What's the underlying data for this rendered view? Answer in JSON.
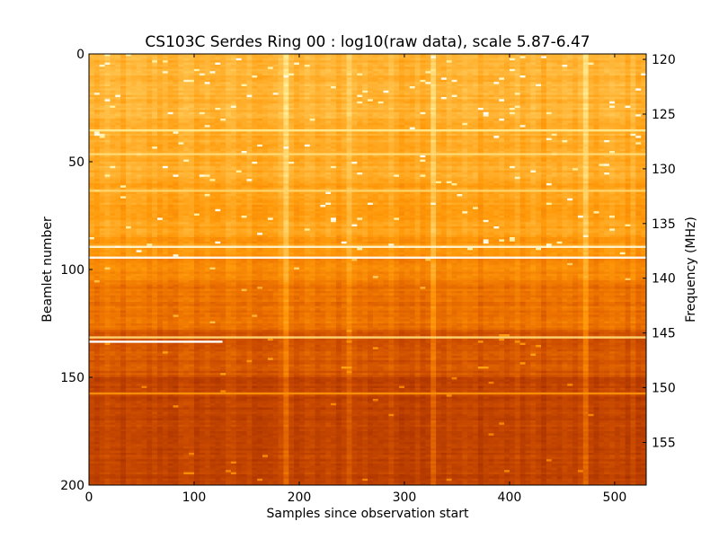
{
  "chart_data": {
    "type": "heatmap",
    "title": "CS103C Serdes Ring 00 : log10(raw data), scale 5.87-6.47",
    "xlabel": "Samples since observation start",
    "ylabel": "Beamlet number",
    "y2label": "Frequency (MHz)",
    "xlim": [
      0,
      530
    ],
    "ylim": [
      200,
      0
    ],
    "y2lim": [
      158.9,
      119.5
    ],
    "x_ticks": [
      {
        "value": 0,
        "label": "0"
      },
      {
        "value": 100,
        "label": "100"
      },
      {
        "value": 200,
        "label": "200"
      },
      {
        "value": 300,
        "label": "300"
      },
      {
        "value": 400,
        "label": "400"
      },
      {
        "value": 500,
        "label": "500"
      }
    ],
    "y_ticks": [
      {
        "value": 0,
        "label": "0"
      },
      {
        "value": 50,
        "label": "50"
      },
      {
        "value": 100,
        "label": "100"
      },
      {
        "value": 150,
        "label": "150"
      },
      {
        "value": 200,
        "label": "200"
      }
    ],
    "y2_ticks": [
      {
        "value": 120,
        "label": "120"
      },
      {
        "value": 125,
        "label": "125"
      },
      {
        "value": 130,
        "label": "130"
      },
      {
        "value": 135,
        "label": "135"
      },
      {
        "value": 140,
        "label": "140"
      },
      {
        "value": 145,
        "label": "145"
      },
      {
        "value": 150,
        "label": "150"
      },
      {
        "value": 155,
        "label": "155"
      }
    ],
    "color_scale": {
      "min": 5.87,
      "max": 6.47
    },
    "colormap": [
      "#7a1e00",
      "#a83000",
      "#cc4c00",
      "#ee7400",
      "#ff9a0a",
      "#ffc14a",
      "#ffef9a",
      "#ffffff"
    ],
    "beamlet_profile": [
      {
        "from": 0,
        "to": 30,
        "level": 0.66
      },
      {
        "from": 30,
        "to": 60,
        "level": 0.64
      },
      {
        "from": 60,
        "to": 85,
        "level": 0.6
      },
      {
        "from": 85,
        "to": 95,
        "level": 0.57
      },
      {
        "from": 95,
        "to": 105,
        "level": 0.5
      },
      {
        "from": 105,
        "to": 128,
        "level": 0.42
      },
      {
        "from": 128,
        "to": 150,
        "level": 0.32
      },
      {
        "from": 150,
        "to": 200,
        "level": 0.24
      }
    ],
    "bright_rows": [
      {
        "beamlet": 35,
        "level": 0.85
      },
      {
        "beamlet": 46,
        "level": 0.8
      },
      {
        "beamlet": 63,
        "level": 0.78
      },
      {
        "beamlet": 89,
        "level": 0.95
      },
      {
        "beamlet": 94,
        "level": 1.0
      },
      {
        "beamlet": 131,
        "level": 0.8
      },
      {
        "beamlet": 157,
        "level": 0.55
      }
    ],
    "bright_segments": [
      {
        "beamlet": 133,
        "x_from": 0,
        "x_to": 127,
        "level": 1.0
      }
    ],
    "bright_columns": [
      {
        "sample": 185,
        "level": 0.15
      },
      {
        "sample": 245,
        "level": 0.12
      },
      {
        "sample": 325,
        "level": 0.14
      },
      {
        "sample": 470,
        "level": 0.1
      }
    ]
  }
}
